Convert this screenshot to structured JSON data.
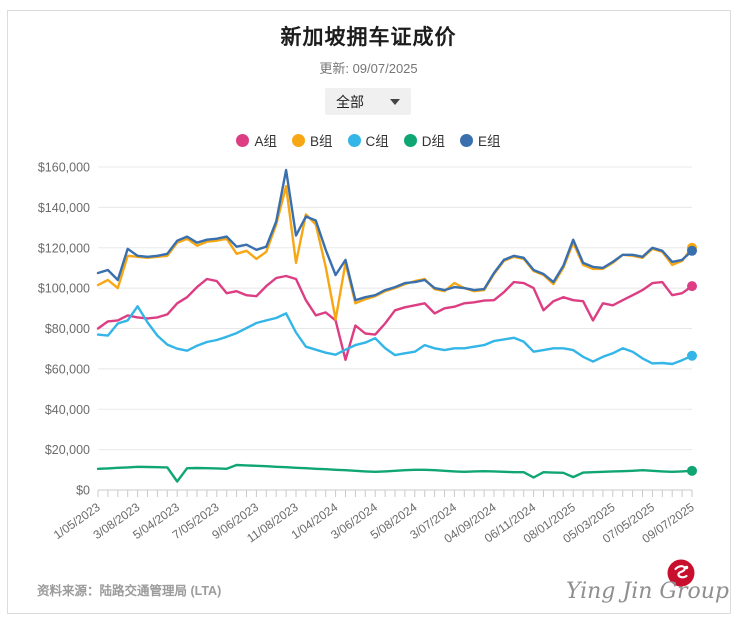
{
  "header": {
    "title": "新加坡拥车证成价",
    "updated": "更新: 09/07/2025"
  },
  "filter": {
    "value": "全部"
  },
  "footer": {
    "source": "资料来源：陆路交通管理局 (LTA)",
    "logo_text": "Ying Jin Group",
    "emblem_color": "#c8102e"
  },
  "chart_data": {
    "type": "line",
    "title": "新加坡拥车证成价",
    "x_labels": [
      "1/05/2023",
      "3/08/2023",
      "5/04/2023",
      "7/05/2023",
      "9/06/2023",
      "11/08/2023",
      "1/04/2024",
      "3/06/2024",
      "5/08/2024",
      "3/07/2024",
      "04/09/2024",
      "06/11/2024",
      "08/01/2025",
      "05/03/2025",
      "07/05/2025",
      "09/07/2025"
    ],
    "label_every": 4,
    "y_axis": {
      "min": 0,
      "max": 160000,
      "step": 20000,
      "prefix": "$"
    },
    "grid": "horizontal",
    "legend_position": "top",
    "series": [
      {
        "name": "A组",
        "color": "#dc3d83",
        "values": [
          80000,
          83500,
          84000,
          86500,
          85500,
          85000,
          85500,
          87000,
          92500,
          95500,
          100500,
          104500,
          103500,
          97500,
          98500,
          96500,
          96000,
          101000,
          105000,
          106000,
          104500,
          94000,
          86500,
          88000,
          84000,
          64500,
          81500,
          77500,
          77000,
          82500,
          89000,
          90500,
          91500,
          92500,
          87500,
          90000,
          90800,
          92500,
          93000,
          93800,
          94000,
          98000,
          103000,
          102500,
          100000,
          89000,
          93500,
          95500,
          94000,
          93500,
          84000,
          92500,
          91500,
          94000,
          96500,
          99000,
          102500,
          103000,
          96500,
          97500,
          101000
        ]
      },
      {
        "name": "B组",
        "color": "#f7a713",
        "values": [
          101500,
          104000,
          100000,
          116000,
          115500,
          115000,
          115500,
          116000,
          122500,
          124500,
          121000,
          123000,
          123500,
          124500,
          117000,
          118500,
          114500,
          118000,
          131500,
          150500,
          112500,
          136500,
          131500,
          110500,
          84500,
          112500,
          92500,
          94500,
          96000,
          98500,
          100000,
          102000,
          103500,
          104500,
          99500,
          98500,
          102500,
          100000,
          98500,
          99000,
          107000,
          113500,
          115500,
          114500,
          108500,
          106500,
          102000,
          110000,
          122500,
          111500,
          109500,
          109500,
          112500,
          116500,
          116000,
          115000,
          119500,
          118000,
          111500,
          113500,
          120000
        ]
      },
      {
        "name": "C组",
        "color": "#33b5e8",
        "values": [
          77000,
          76500,
          82500,
          84000,
          91000,
          83000,
          76500,
          72000,
          70000,
          69000,
          71500,
          73300,
          74300,
          75900,
          77700,
          80200,
          82700,
          84000,
          85200,
          87500,
          78000,
          71000,
          69500,
          68000,
          67000,
          69500,
          71800,
          73000,
          75200,
          70300,
          66800,
          67700,
          68500,
          71800,
          70200,
          69300,
          70200,
          70200,
          71000,
          71800,
          73800,
          74600,
          75400,
          73500,
          68500,
          69300,
          70200,
          70200,
          69300,
          66000,
          63600,
          66000,
          67700,
          70200,
          68500,
          65200,
          62700,
          62900,
          62400,
          64300,
          66500
        ]
      },
      {
        "name": "D组",
        "color": "#10a674",
        "values": [
          10500,
          10700,
          11000,
          11200,
          11500,
          11400,
          11300,
          11200,
          4200,
          10800,
          10900,
          10800,
          10700,
          10500,
          12400,
          12200,
          12000,
          11800,
          11500,
          11300,
          11000,
          10800,
          10500,
          10300,
          10000,
          9800,
          9500,
          9200,
          9000,
          9200,
          9500,
          9800,
          10000,
          10000,
          9800,
          9500,
          9200,
          9000,
          9200,
          9300,
          9200,
          9000,
          8800,
          8800,
          6200,
          8800,
          8600,
          8500,
          6400,
          8600,
          8800,
          9000,
          9200,
          9300,
          9500,
          9800,
          9500,
          9200,
          9000,
          9200,
          9500
        ]
      },
      {
        "name": "E组",
        "color": "#3a6fae",
        "values": [
          107500,
          109000,
          104000,
          119500,
          116000,
          115500,
          116000,
          117000,
          123500,
          125500,
          122500,
          124000,
          124500,
          125500,
          120500,
          121500,
          119000,
          120500,
          133000,
          158500,
          126000,
          135500,
          133500,
          119000,
          106500,
          114000,
          94000,
          95500,
          96500,
          99000,
          100500,
          102500,
          103000,
          104000,
          100000,
          99000,
          100500,
          100000,
          99000,
          99500,
          107500,
          114000,
          116000,
          115000,
          109000,
          107000,
          103000,
          111000,
          124000,
          112500,
          110500,
          110000,
          113000,
          116500,
          116500,
          115500,
          120000,
          118500,
          113000,
          114000,
          118500
        ]
      }
    ]
  }
}
